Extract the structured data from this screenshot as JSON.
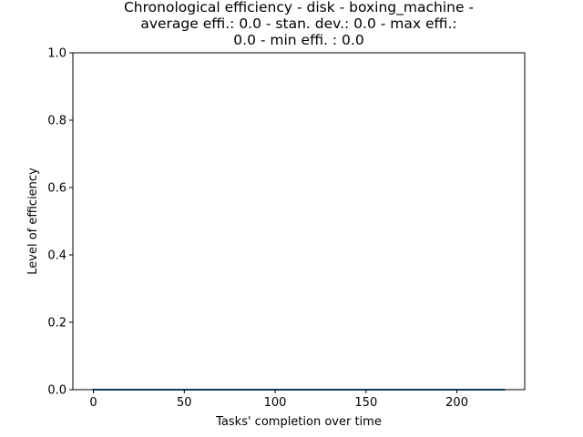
{
  "chart_data": {
    "type": "line",
    "title_lines": [
      "Chronological efficiency - disk - boxing_machine -",
      "average effi.: 0.0 - stan. dev.: 0.0 - max effi.:",
      "0.0 - min effi. : 0.0"
    ],
    "xlabel": "Tasks' completion over time",
    "ylabel": "Level of efficiency",
    "xlim": [
      -11.3,
      237.3
    ],
    "ylim": [
      0.0,
      1.0
    ],
    "xticks": [
      0,
      50,
      100,
      150,
      200
    ],
    "xtick_labels": [
      "0",
      "50",
      "100",
      "150",
      "200"
    ],
    "yticks": [
      0.0,
      0.2,
      0.4,
      0.6,
      0.8,
      1.0
    ],
    "ytick_labels": [
      "0.0",
      "0.2",
      "0.4",
      "0.6",
      "0.8",
      "1.0"
    ],
    "grid": false,
    "series": [
      {
        "color": "#1f77b4",
        "x_range": [
          0,
          226
        ],
        "y_constant": 0.0
      }
    ]
  }
}
